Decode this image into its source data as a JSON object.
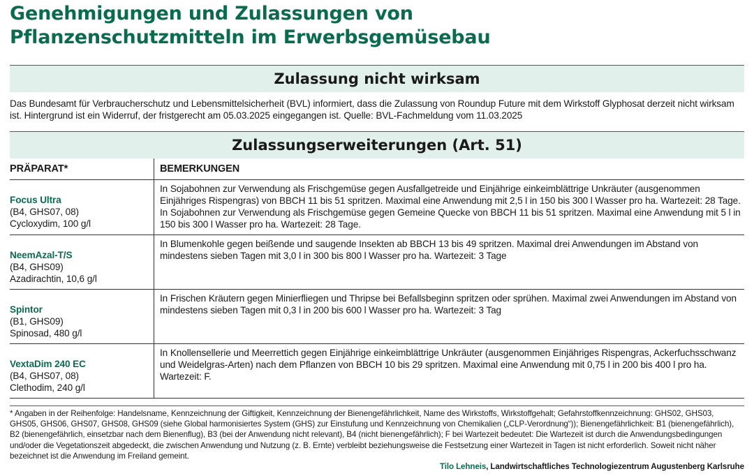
{
  "title": {
    "line1": "Genehmigungen und Zulassungen von",
    "line2": "Pflanzenschutzmitteln im Erwerbsgemüsebau"
  },
  "section1": {
    "heading": "Zulassung nicht wirksam",
    "text": "Das Bundesamt für Verbraucherschutz und Lebensmittelsicherheit (BVL) informiert, dass die Zulassung von Roundup Future mit dem Wirkstoff Glyphosat derzeit nicht wirksam ist. Hintergrund ist ein Widerruf, der fristgerecht am 05.03.2025 eingegangen ist. Quelle: BVL-Fachmeldung vom 11.03.2025"
  },
  "section2": {
    "heading": "Zulassungserweiterungen (Art. 51)",
    "columns": [
      "PRÄPARAT*",
      "BEMERKUNGEN"
    ],
    "rows": [
      {
        "name": "Focus Ultra",
        "codes": "(B4, GHS07, 08)",
        "substance": "Cycloxydim, 100 g/l",
        "remarks": [
          "In Sojabohnen zur Verwendung als Frischgemüse gegen Ausfallgetreide und Einjährige einkeimblättrige Unkräuter (ausgenommen Einjähriges Rispengras) von BBCH 11 bis 51 spritzen. Maximal eine Anwendung mit 2,5 l in 150 bis 300 l Wasser pro ha. Wartezeit: 28 Tage.",
          "In Sojabohnen zur Verwendung als Frischgemüse gegen Gemeine Quecke von BBCH 11 bis 51 spritzen. Maximal eine Anwendung mit 5 l in 150 bis 300 l Wasser pro ha. Wartezeit: 28 Tage."
        ]
      },
      {
        "name": "NeemAzal-T/S",
        "codes": "(B4, GHS09)",
        "substance": "Azadirachtin, 10,6 g/l",
        "remarks": [
          "In Blumenkohle gegen beißende und saugende Insekten ab BBCH 13 bis 49 spritzen. Maximal drei Anwendungen im Abstand von mindestens sieben Tagen mit 3,0 l in 300 bis 800 l Wasser pro ha. Wartezeit: 3 Tage"
        ]
      },
      {
        "name": "Spintor",
        "codes": "(B1, GHS09)",
        "substance": "Spinosad, 480 g/l",
        "remarks": [
          "In Frischen Kräutern gegen Minierfliegen und Thripse bei Befallsbeginn spritzen oder sprühen. Maximal zwei Anwendungen im Abstand von mindestens sieben Tagen mit 0,3 l in 200 bis 600 l Wasser pro ha. Wartezeit: 3 Tag"
        ]
      },
      {
        "name": "VextaDim 240 EC",
        "codes": "(B4, GHS07, 08)",
        "substance": "Clethodim, 240 g/l",
        "remarks": [
          "In Knollensellerie und Meerrettich gegen Einjährige einkeimblättrige Unkräuter (ausgenommen Einjähriges Rispengras, Ackerfuchsschwanz und Weidelgras-Arten) nach dem Pflanzen von BBCH 10 bis 29 spritzen. Maximal eine Anwendung mit 0,75 l in 200 bis 400 l pro ha. Wartezeit: F."
        ]
      }
    ]
  },
  "footnote": {
    "text": "* Angaben in der Reihenfolge: Handelsname, Kennzeichnung der Giftigkeit, Kennzeichnung der Bienengefährlichkeit, Name des Wirkstoffs, Wirkstoffgehalt; Gefahrstoffkennzeichnung: GHS02, GHS03, GHS05, GHS06, GHS07, GHS08, GHS09 (siehe Global harmonisiertes System (GHS) zur Einstufung und Kennzeichnung von Chemikalien („CLP-Verordnung“)); Bienengefährlichkeit: B1 (bienengefährlich), B2 (bienengefährlich, einsetzbar nach dem Bienenflug), B3 (bei der Anwendung nicht relevant), B4 (nicht bienengefährlich); F bei Wartezeit bedeutet: Die Wartezeit ist durch die Anwendungsbedingungen und/oder die Vegetationszeit abgedeckt, die zwischen Anwendung und Nutzung (z. B. Ernte) verbleibt beziehungsweise die Festsetzung einer Wartezeit in Tagen ist nicht erforderlich. Soweit nicht näher bezeichnet ist die Anwendung im Freiland gemeint.",
    "author": "Tilo Lehneis",
    "institution": ", Landwirtschaftliches Technologiezentrum Augustenberg Karlsruhe"
  },
  "colors": {
    "brand_green": "#0b6b4e",
    "band": "#e1f0ea"
  }
}
